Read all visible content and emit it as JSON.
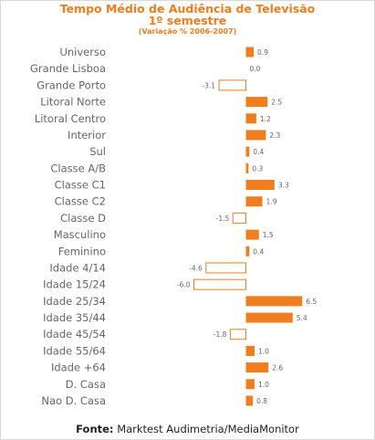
{
  "title_line1": "Tempo Médio de Audiência  de Televisão",
  "title_line2": "1º semestre",
  "title_line3": "(Variação % 2006-2007)",
  "footer_label": "Fonte:",
  "footer_text": "Marktest Audimetria/MediaMonitor",
  "colors": {
    "positive": "#f07d1e",
    "negative_fill": "#ffffff",
    "negative_stroke": "#f07d1e",
    "title": "#f07d1e"
  },
  "chart_data": {
    "type": "bar",
    "orientation": "horizontal",
    "categories": [
      "Universo",
      "Grande Lisboa",
      "Grande Porto",
      "Litoral Norte",
      "Litoral Centro",
      "Interior",
      "Sul",
      "Classe A/B",
      "Classe C1",
      "Classe C2",
      "Classe D",
      "Masculino",
      "Feminino",
      "Idade 4/14",
      "Idade 15/24",
      "Idade 25/34",
      "Idade 35/44",
      "Idade 45/54",
      "Idade 55/64",
      "Idade +64",
      "D. Casa",
      "Nao D. Casa"
    ],
    "values": [
      0.9,
      0.0,
      -3.1,
      2.5,
      1.2,
      2.3,
      0.4,
      0.3,
      3.3,
      1.9,
      -1.5,
      1.5,
      0.4,
      -4.6,
      -6.0,
      6.5,
      5.4,
      -1.8,
      1.0,
      2.6,
      1.0,
      0.8
    ],
    "labels": [
      "0.9",
      "0.0",
      "-3.1",
      "2.5",
      "1.2",
      "2.3",
      "0.4",
      "0.3",
      "3.3",
      "1.9",
      "-1.5",
      "1.5",
      "0.4",
      "-4.6",
      "-6.0",
      "6.5",
      "5.4",
      "-1.8",
      "1.0",
      "2.6",
      "1.0",
      "0.8"
    ],
    "grid": false
  }
}
